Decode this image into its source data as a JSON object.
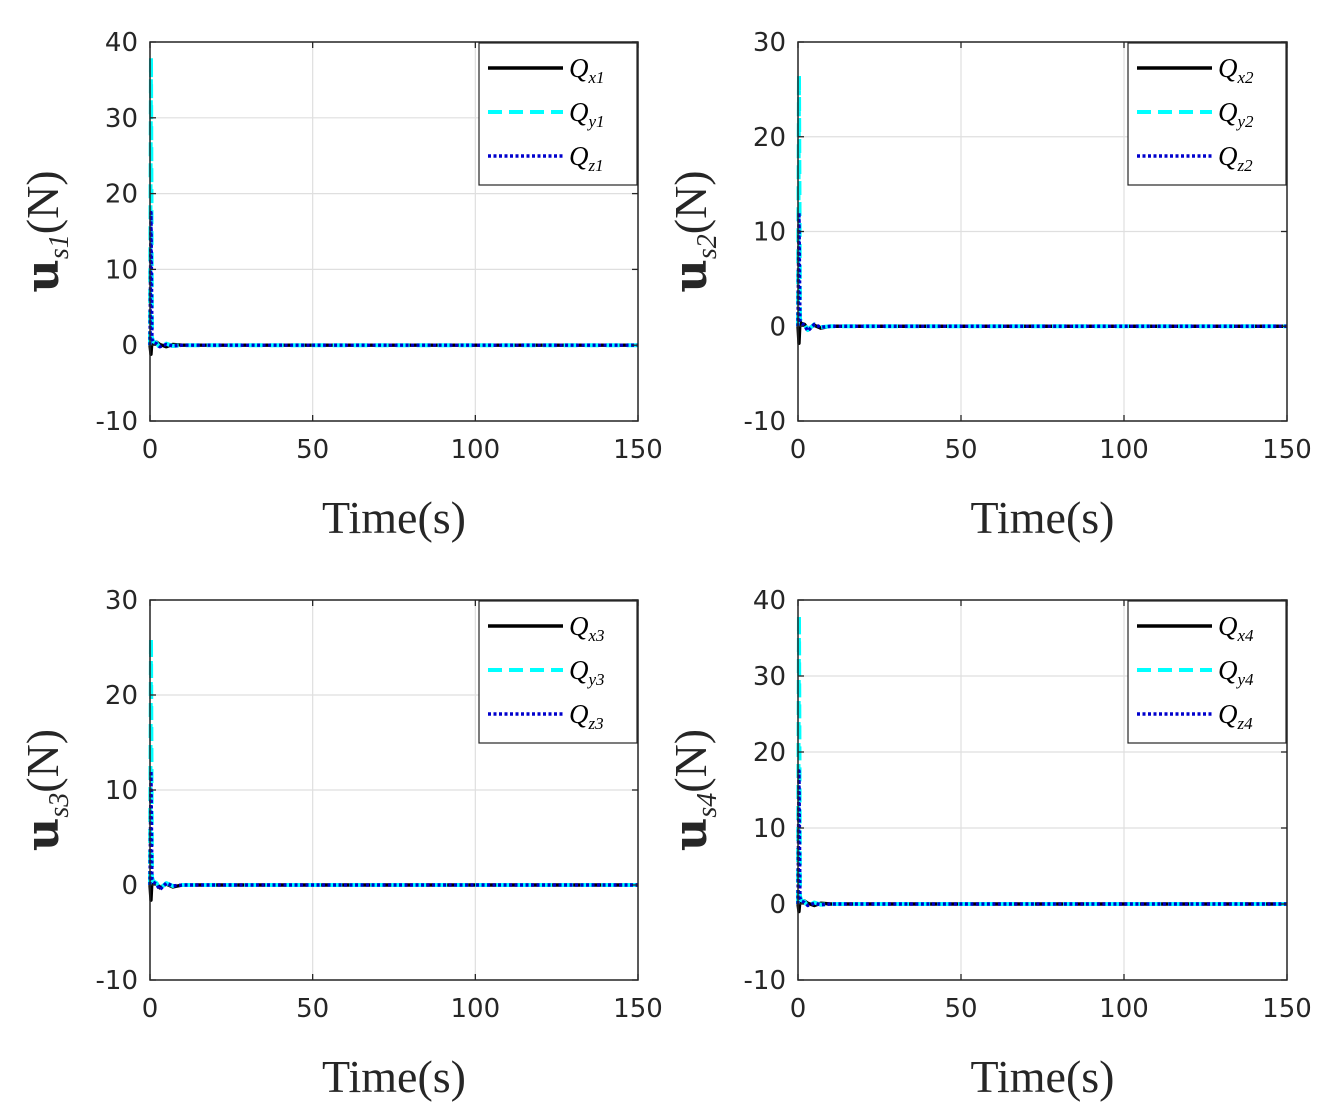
{
  "chart_data": [
    {
      "type": "line",
      "ylabel": {
        "main": "u",
        "sub": "s1",
        "unit": "(N)"
      },
      "xlabel": "Time(s)",
      "xlim": [
        0,
        150
      ],
      "ylim": [
        -10,
        40
      ],
      "xticks": [
        "0",
        "50",
        "100",
        "150"
      ],
      "yticks": [
        "-10",
        "0",
        "10",
        "20",
        "30",
        "40"
      ],
      "grid": true,
      "legend_position": "top-right",
      "series": [
        {
          "name": "Q",
          "sub": "x1",
          "color": "#000000",
          "style": "solid",
          "spike": [
            0,
            -1.2
          ],
          "x": [
            0,
            0.3,
            0.6,
            1,
            2,
            3,
            5,
            7,
            10,
            150
          ],
          "y": [
            0,
            -1.2,
            0.6,
            0.3,
            0.4,
            0.1,
            -0.2,
            0.1,
            0,
            0
          ]
        },
        {
          "name": "Q",
          "sub": "y1",
          "color": "#00ffff",
          "style": "dashed",
          "spike": [
            0,
            38
          ],
          "x": [
            0,
            0.3,
            0.6,
            1,
            2,
            3,
            5,
            7,
            10,
            150
          ],
          "y": [
            0,
            38,
            1,
            0.5,
            0.3,
            -0.3,
            0.2,
            -0.1,
            0,
            0
          ]
        },
        {
          "name": "Q",
          "sub": "z1",
          "color": "#0000cd",
          "style": "dotted",
          "spike": [
            0,
            17.5
          ],
          "x": [
            0,
            0.3,
            0.6,
            1,
            2,
            3,
            5,
            7,
            10,
            150
          ],
          "y": [
            0,
            17.5,
            0.8,
            0.4,
            0.2,
            -0.2,
            0.1,
            -0.1,
            0,
            0
          ]
        }
      ]
    },
    {
      "type": "line",
      "ylabel": {
        "main": "u",
        "sub": "s2",
        "unit": "(N)"
      },
      "xlabel": "Time(s)",
      "xlim": [
        0,
        150
      ],
      "ylim": [
        -10,
        30
      ],
      "xticks": [
        "0",
        "50",
        "100",
        "150"
      ],
      "yticks": [
        "-10",
        "0",
        "10",
        "20",
        "30"
      ],
      "grid": true,
      "legend_position": "top-right",
      "series": [
        {
          "name": "Q",
          "sub": "x2",
          "color": "#000000",
          "style": "solid",
          "x": [
            0,
            0.3,
            0.6,
            1,
            2,
            3,
            5,
            7,
            10,
            150
          ],
          "y": [
            0,
            -1.8,
            0.5,
            0.3,
            0.2,
            -0.3,
            0.1,
            -0.2,
            0,
            0
          ]
        },
        {
          "name": "Q",
          "sub": "y2",
          "color": "#00ffff",
          "style": "dashed",
          "x": [
            0,
            0.3,
            0.6,
            1,
            2,
            3,
            5,
            7,
            10,
            150
          ],
          "y": [
            0,
            26.5,
            0.8,
            0.4,
            0.2,
            -0.4,
            0.2,
            -0.1,
            0,
            0
          ]
        },
        {
          "name": "Q",
          "sub": "z2",
          "color": "#0000cd",
          "style": "dotted",
          "x": [
            0,
            0.3,
            0.6,
            1,
            2,
            3,
            5,
            7,
            10,
            150
          ],
          "y": [
            0,
            12,
            0.6,
            0.3,
            0.1,
            -0.5,
            0.2,
            -0.1,
            0,
            0
          ]
        }
      ]
    },
    {
      "type": "line",
      "ylabel": {
        "main": "u",
        "sub": "s3",
        "unit": "(N)"
      },
      "xlabel": "Time(s)",
      "xlim": [
        0,
        150
      ],
      "ylim": [
        -10,
        30
      ],
      "xticks": [
        "0",
        "50",
        "100",
        "150"
      ],
      "yticks": [
        "-10",
        "0",
        "10",
        "20",
        "30"
      ],
      "grid": true,
      "legend_position": "top-right",
      "series": [
        {
          "name": "Q",
          "sub": "x3",
          "color": "#000000",
          "style": "solid",
          "x": [
            0,
            0.3,
            0.6,
            1,
            2,
            3,
            5,
            7,
            10,
            150
          ],
          "y": [
            0,
            -1.6,
            0.5,
            0.3,
            0.2,
            -0.3,
            0.1,
            -0.2,
            0,
            0
          ]
        },
        {
          "name": "Q",
          "sub": "y3",
          "color": "#00ffff",
          "style": "dashed",
          "x": [
            0,
            0.3,
            0.6,
            1,
            2,
            3,
            5,
            7,
            10,
            150
          ],
          "y": [
            0,
            26,
            0.8,
            0.4,
            0.2,
            -0.4,
            0.2,
            -0.1,
            0,
            0
          ]
        },
        {
          "name": "Q",
          "sub": "z3",
          "color": "#0000cd",
          "style": "dotted",
          "x": [
            0,
            0.3,
            0.6,
            1,
            2,
            3,
            5,
            7,
            10,
            150
          ],
          "y": [
            0,
            12,
            0.6,
            0.3,
            0.1,
            -0.5,
            0.2,
            -0.1,
            0,
            0
          ]
        }
      ]
    },
    {
      "type": "line",
      "ylabel": {
        "main": "u",
        "sub": "s4",
        "unit": "(N)"
      },
      "xlabel": "Time(s)",
      "xlim": [
        0,
        150
      ],
      "ylim": [
        -10,
        40
      ],
      "xticks": [
        "0",
        "50",
        "100",
        "150"
      ],
      "yticks": [
        "-10",
        "0",
        "10",
        "20",
        "30",
        "40"
      ],
      "grid": true,
      "legend_position": "top-right",
      "series": [
        {
          "name": "Q",
          "sub": "x4",
          "color": "#000000",
          "style": "solid",
          "x": [
            0,
            0.3,
            0.6,
            1,
            2,
            3,
            5,
            7,
            10,
            150
          ],
          "y": [
            0,
            -1,
            0.6,
            0.3,
            0.4,
            0.1,
            -0.2,
            0.1,
            0,
            0
          ]
        },
        {
          "name": "Q",
          "sub": "y4",
          "color": "#00ffff",
          "style": "dashed",
          "x": [
            0,
            0.3,
            0.6,
            1,
            2,
            3,
            5,
            7,
            10,
            150
          ],
          "y": [
            0,
            38,
            1,
            0.5,
            0.3,
            -0.3,
            0.2,
            -0.1,
            0,
            0
          ]
        },
        {
          "name": "Q",
          "sub": "z4",
          "color": "#0000cd",
          "style": "dotted",
          "x": [
            0,
            0.3,
            0.6,
            1,
            2,
            3,
            5,
            7,
            10,
            150
          ],
          "y": [
            0,
            17.5,
            0.8,
            0.4,
            0.2,
            -0.2,
            0.1,
            -0.1,
            0,
            0
          ]
        }
      ]
    }
  ]
}
